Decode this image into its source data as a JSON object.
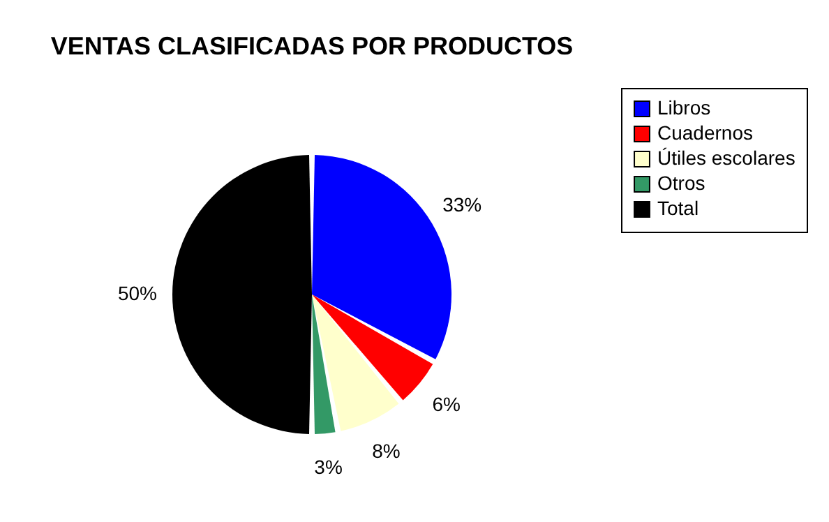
{
  "chart_data": {
    "type": "pie",
    "title": "VENTAS CLASIFICADAS POR PRODUCTOS",
    "categories": [
      "Libros",
      "Cuadernos",
      "Útiles escolares",
      "Otros",
      "Total"
    ],
    "values": [
      33,
      6,
      8,
      3,
      50
    ],
    "colors": [
      "#0000ff",
      "#ff0000",
      "#ffffcc",
      "#339966",
      "#000000"
    ],
    "value_labels": [
      "33%",
      "6%",
      "8%",
      "3%",
      "50%"
    ],
    "legend": "right"
  }
}
